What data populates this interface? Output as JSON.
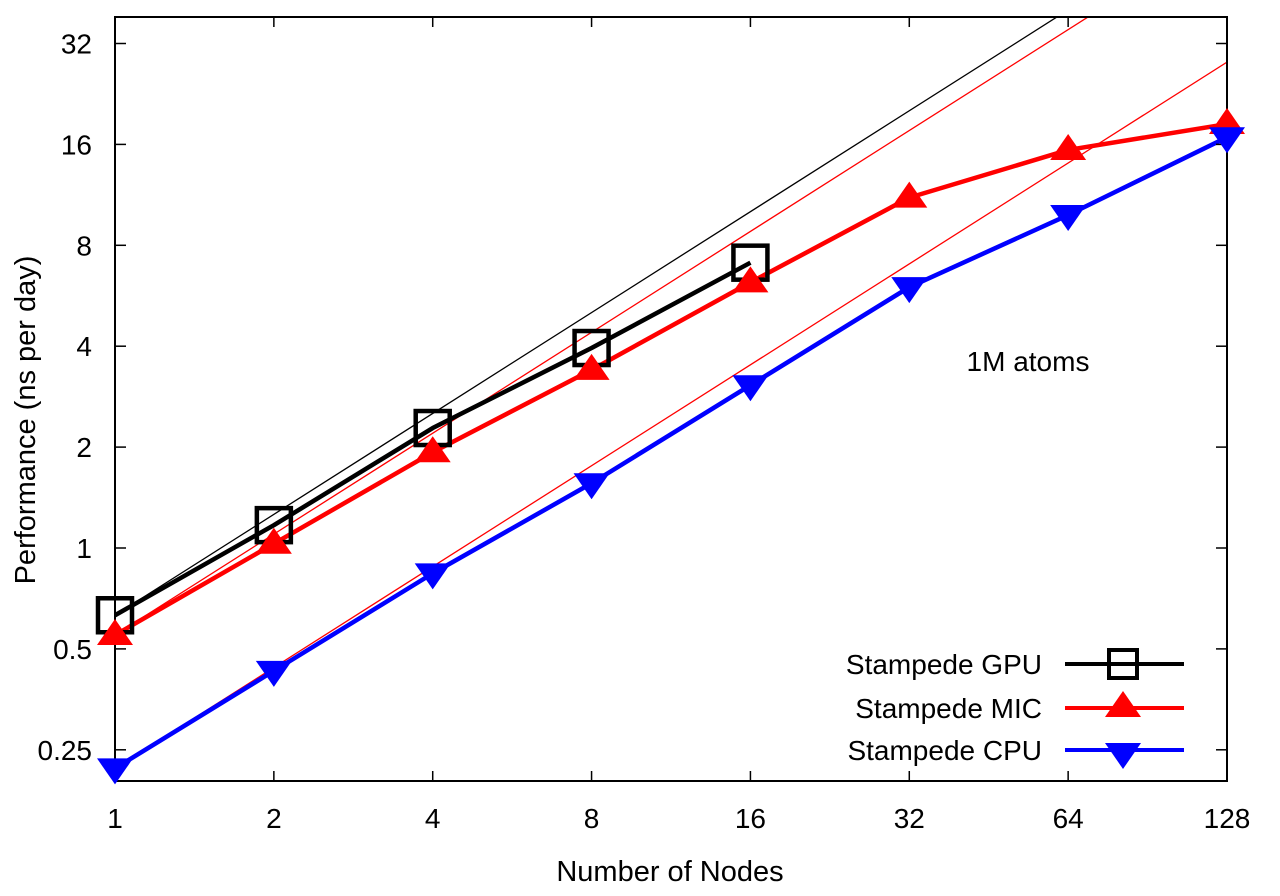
{
  "chart_data": {
    "type": "line",
    "title": "",
    "xlabel": "Number of Nodes",
    "ylabel": "Performance (ns per day)",
    "xscale": "log2",
    "yscale": "log2",
    "xlim": [
      1,
      128
    ],
    "ylim": [
      0.21,
      37
    ],
    "x_ticks": [
      1,
      2,
      4,
      8,
      16,
      32,
      64,
      128
    ],
    "x_tick_labels": [
      "1",
      "2",
      "4",
      "8",
      "16",
      "32",
      "64",
      "128"
    ],
    "y_ticks": [
      0.25,
      0.5,
      1,
      2,
      4,
      8,
      16,
      32
    ],
    "y_tick_labels": [
      "0.25",
      "0.5",
      "1",
      "2",
      "4",
      "8",
      "16",
      "32"
    ],
    "grid": false,
    "legend_position": "bottom-right",
    "annotation": "1M atoms",
    "series": [
      {
        "name": "Stampede GPU",
        "color": "#000000",
        "marker": "open-square",
        "x": [
          1,
          2,
          4,
          8,
          16
        ],
        "values": [
          0.63,
          1.17,
          2.28,
          3.95,
          7.1
        ]
      },
      {
        "name": "Stampede MIC",
        "color": "#ff0000",
        "marker": "filled-triangle-up",
        "x": [
          1,
          2,
          4,
          8,
          16,
          32,
          64,
          128
        ],
        "values": [
          0.55,
          1.03,
          1.93,
          3.4,
          6.2,
          11.1,
          15.4,
          18.4
        ]
      },
      {
        "name": "Stampede CPU",
        "color": "#0000ff",
        "marker": "filled-triangle-down",
        "x": [
          1,
          2,
          4,
          8,
          16,
          32,
          64,
          128
        ],
        "values": [
          0.22,
          0.43,
          0.84,
          1.56,
          3.06,
          6.0,
          9.85,
          16.8
        ]
      }
    ],
    "ideal_scaling_lines": [
      {
        "name": "GPU ideal",
        "color": "#000000",
        "base_value_at_1": 0.63
      },
      {
        "name": "MIC ideal",
        "color": "#ff0000",
        "base_value_at_1": 0.55
      },
      {
        "name": "CPU ideal",
        "color": "#ff0000",
        "base_value_at_1": 0.22
      }
    ]
  }
}
